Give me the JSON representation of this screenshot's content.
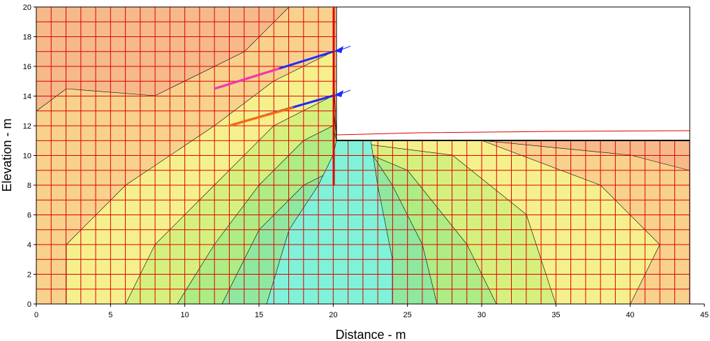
{
  "chart_data": {
    "type": "contour",
    "x_label": "Distance - m",
    "y_label": "Elevation - m",
    "xlim": [
      0,
      45
    ],
    "ylim": [
      0,
      20
    ],
    "xticks": [
      0,
      5,
      10,
      15,
      20,
      25,
      30,
      35,
      40,
      45
    ],
    "yticks": [
      0,
      2,
      4,
      6,
      8,
      10,
      12,
      14,
      16,
      18,
      20
    ]
  }
}
